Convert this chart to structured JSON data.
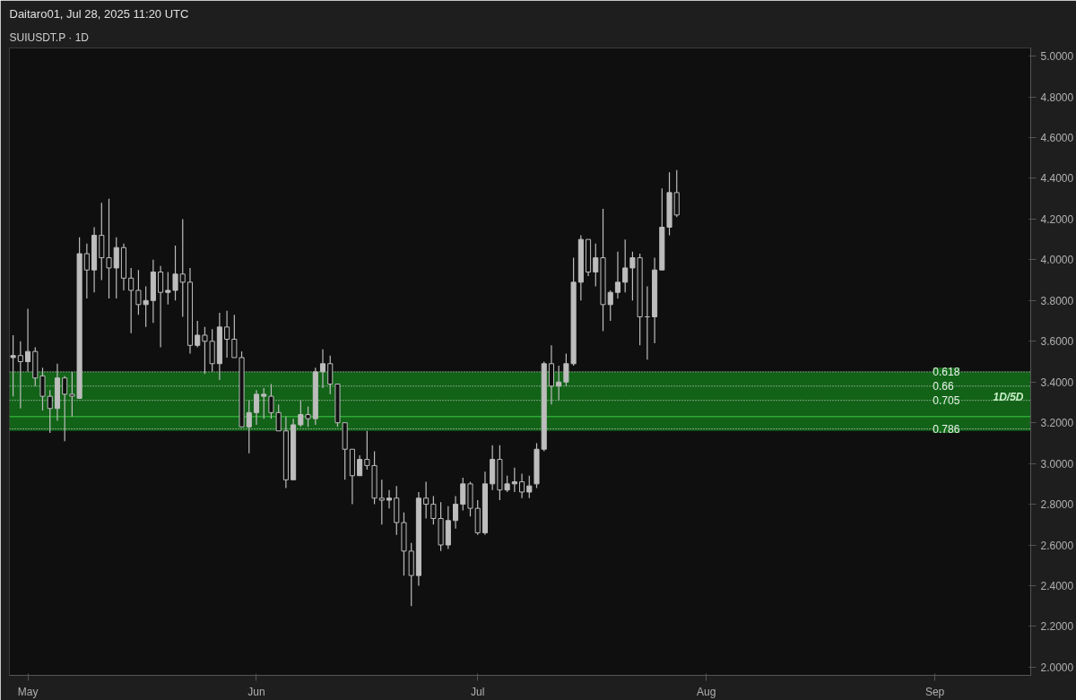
{
  "chart_data": {
    "type": "candlestick",
    "title": "Daitaro01, Jul 28, 2025 11:20 UTC",
    "subtitle": "SUIUSDT.P · 1D",
    "x": [
      "2025-04-29",
      "2025-04-30",
      "2025-05-01",
      "2025-05-02",
      "2025-05-03",
      "2025-05-04",
      "2025-05-05",
      "2025-05-06",
      "2025-05-07",
      "2025-05-08",
      "2025-05-09",
      "2025-05-10",
      "2025-05-11",
      "2025-05-12",
      "2025-05-13",
      "2025-05-14",
      "2025-05-15",
      "2025-05-16",
      "2025-05-17",
      "2025-05-18",
      "2025-05-19",
      "2025-05-20",
      "2025-05-21",
      "2025-05-22",
      "2025-05-23",
      "2025-05-24",
      "2025-05-25",
      "2025-05-26",
      "2025-05-27",
      "2025-05-28",
      "2025-05-29",
      "2025-05-30",
      "2025-05-31",
      "2025-06-01",
      "2025-06-02",
      "2025-06-03",
      "2025-06-04",
      "2025-06-05",
      "2025-06-06",
      "2025-06-07",
      "2025-06-08",
      "2025-06-09",
      "2025-06-10",
      "2025-06-11",
      "2025-06-12",
      "2025-06-13",
      "2025-06-14",
      "2025-06-15",
      "2025-06-16",
      "2025-06-17",
      "2025-06-18",
      "2025-06-19",
      "2025-06-20",
      "2025-06-21",
      "2025-06-22",
      "2025-06-23",
      "2025-06-24",
      "2025-06-25",
      "2025-06-26",
      "2025-06-27",
      "2025-06-28",
      "2025-06-29",
      "2025-06-30",
      "2025-07-01",
      "2025-07-02",
      "2025-07-03",
      "2025-07-04",
      "2025-07-05",
      "2025-07-06",
      "2025-07-07",
      "2025-07-08",
      "2025-07-09",
      "2025-07-10",
      "2025-07-11",
      "2025-07-12",
      "2025-07-13",
      "2025-07-14",
      "2025-07-15",
      "2025-07-16",
      "2025-07-17",
      "2025-07-18",
      "2025-07-19",
      "2025-07-20",
      "2025-07-21",
      "2025-07-22",
      "2025-07-23",
      "2025-07-24",
      "2025-07-25",
      "2025-07-26",
      "2025-07-27",
      "2025-07-28"
    ],
    "ohlc": [
      [
        3.52,
        3.63,
        3.33,
        3.53
      ],
      [
        3.53,
        3.6,
        3.27,
        3.5
      ],
      [
        3.5,
        3.76,
        3.45,
        3.55
      ],
      [
        3.55,
        3.57,
        3.38,
        3.42
      ],
      [
        3.43,
        3.47,
        3.26,
        3.33
      ],
      [
        3.33,
        3.36,
        3.15,
        3.27
      ],
      [
        3.27,
        3.49,
        3.21,
        3.42
      ],
      [
        3.42,
        3.43,
        3.11,
        3.34
      ],
      [
        3.34,
        3.45,
        3.23,
        3.33
      ],
      [
        3.32,
        4.11,
        3.32,
        4.03
      ],
      [
        4.03,
        4.08,
        3.81,
        3.95
      ],
      [
        3.95,
        4.16,
        3.84,
        4.12
      ],
      [
        4.12,
        4.28,
        3.9,
        4.01
      ],
      [
        4.01,
        4.3,
        3.81,
        3.96
      ],
      [
        3.96,
        4.11,
        3.81,
        4.06
      ],
      [
        4.06,
        4.08,
        3.85,
        3.91
      ],
      [
        3.91,
        3.96,
        3.64,
        3.85
      ],
      [
        3.85,
        3.95,
        3.73,
        3.78
      ],
      [
        3.78,
        3.87,
        3.67,
        3.8
      ],
      [
        3.8,
        4.0,
        3.69,
        3.94
      ],
      [
        3.94,
        3.97,
        3.57,
        3.84
      ],
      [
        3.84,
        3.94,
        3.78,
        3.85
      ],
      [
        3.85,
        4.07,
        3.8,
        3.93
      ],
      [
        3.93,
        4.2,
        3.72,
        3.89
      ],
      [
        3.89,
        3.96,
        3.54,
        3.58
      ],
      [
        3.58,
        3.7,
        3.57,
        3.63
      ],
      [
        3.63,
        3.67,
        3.44,
        3.6
      ],
      [
        3.6,
        3.66,
        3.45,
        3.49
      ],
      [
        3.49,
        3.74,
        3.41,
        3.67
      ],
      [
        3.67,
        3.75,
        3.52,
        3.61
      ],
      [
        3.61,
        3.73,
        3.52,
        3.52
      ],
      [
        3.52,
        3.55,
        3.18,
        3.18
      ],
      [
        3.18,
        3.31,
        3.05,
        3.25
      ],
      [
        3.25,
        3.36,
        3.19,
        3.34
      ],
      [
        3.33,
        3.37,
        3.22,
        3.34
      ],
      [
        3.33,
        3.39,
        3.22,
        3.25
      ],
      [
        3.25,
        3.29,
        3.16,
        3.16
      ],
      [
        3.16,
        3.23,
        2.88,
        2.92
      ],
      [
        2.92,
        3.22,
        2.92,
        3.19
      ],
      [
        3.19,
        3.31,
        3.18,
        3.24
      ],
      [
        3.24,
        3.28,
        3.18,
        3.22
      ],
      [
        3.22,
        3.47,
        3.19,
        3.45
      ],
      [
        3.45,
        3.56,
        3.37,
        3.49
      ],
      [
        3.49,
        3.53,
        3.34,
        3.39
      ],
      [
        3.39,
        3.39,
        3.18,
        3.2
      ],
      [
        3.2,
        3.2,
        2.92,
        3.07
      ],
      [
        3.07,
        3.07,
        2.8,
        2.94
      ],
      [
        2.94,
        3.04,
        2.94,
        3.02
      ],
      [
        3.02,
        3.16,
        2.97,
        2.99
      ],
      [
        2.99,
        3.06,
        2.8,
        2.83
      ],
      [
        2.83,
        2.92,
        2.7,
        2.82
      ],
      [
        2.82,
        2.87,
        2.78,
        2.83
      ],
      [
        2.83,
        2.89,
        2.65,
        2.71
      ],
      [
        2.71,
        2.76,
        2.45,
        2.57
      ],
      [
        2.57,
        2.61,
        2.3,
        2.45
      ],
      [
        2.45,
        2.86,
        2.4,
        2.83
      ],
      [
        2.83,
        2.91,
        2.73,
        2.8
      ],
      [
        2.8,
        2.84,
        2.7,
        2.73
      ],
      [
        2.73,
        2.81,
        2.57,
        2.6
      ],
      [
        2.6,
        2.79,
        2.58,
        2.72
      ],
      [
        2.72,
        2.84,
        2.68,
        2.8
      ],
      [
        2.8,
        2.93,
        2.77,
        2.9
      ],
      [
        2.9,
        2.91,
        2.74,
        2.78
      ],
      [
        2.78,
        2.82,
        2.65,
        2.66
      ],
      [
        2.66,
        2.96,
        2.65,
        2.9
      ],
      [
        2.9,
        3.09,
        2.87,
        3.02
      ],
      [
        3.02,
        3.09,
        2.82,
        2.87
      ],
      [
        2.87,
        2.94,
        2.86,
        2.9
      ],
      [
        2.9,
        2.98,
        2.86,
        2.91
      ],
      [
        2.91,
        2.95,
        2.83,
        2.86
      ],
      [
        2.86,
        2.94,
        2.83,
        2.89
      ],
      [
        2.9,
        3.1,
        2.88,
        3.07
      ],
      [
        3.07,
        3.5,
        3.06,
        3.49
      ],
      [
        3.49,
        3.58,
        3.29,
        3.38
      ],
      [
        3.38,
        3.48,
        3.31,
        3.4
      ],
      [
        3.4,
        3.54,
        3.38,
        3.49
      ],
      [
        3.49,
        4.01,
        3.48,
        3.89
      ],
      [
        3.89,
        4.12,
        3.8,
        4.1
      ],
      [
        4.1,
        4.1,
        3.92,
        3.94
      ],
      [
        3.94,
        4.08,
        3.87,
        4.01
      ],
      [
        4.01,
        4.25,
        3.65,
        3.78
      ],
      [
        3.78,
        3.85,
        3.7,
        3.84
      ],
      [
        3.84,
        4.04,
        3.81,
        3.89
      ],
      [
        3.89,
        4.1,
        3.84,
        3.96
      ],
      [
        3.96,
        4.04,
        3.8,
        4.01
      ],
      [
        4.01,
        4.03,
        3.58,
        3.72
      ],
      [
        3.72,
        3.87,
        3.51,
        3.72
      ],
      [
        3.72,
        4.01,
        3.59,
        3.95
      ],
      [
        3.95,
        4.35,
        3.95,
        4.16
      ],
      [
        4.16,
        4.43,
        4.12,
        4.33
      ],
      [
        4.33,
        4.44,
        4.21,
        4.22
      ]
    ],
    "color": "#bdbdbd",
    "xlim": [
      "2025-04-28T12:00",
      "2025-09-14"
    ],
    "xticks": [
      {
        "value": "2025-05-01",
        "label": "May"
      },
      {
        "value": "2025-06-01",
        "label": "Jun"
      },
      {
        "value": "2025-07-01",
        "label": "Jul"
      },
      {
        "value": "2025-08-01",
        "label": "Aug"
      },
      {
        "value": "2025-09-01",
        "label": "Sep"
      }
    ],
    "ylim": [
      1.96,
      5.04
    ],
    "yticks": [
      {
        "value": 2.0,
        "label": "2.0000"
      },
      {
        "value": 2.2,
        "label": "2.2000"
      },
      {
        "value": 2.4,
        "label": "2.4000"
      },
      {
        "value": 2.6,
        "label": "2.6000"
      },
      {
        "value": 2.8,
        "label": "2.8000"
      },
      {
        "value": 3.0,
        "label": "3.0000"
      },
      {
        "value": 3.2,
        "label": "3.2000"
      },
      {
        "value": 3.4,
        "label": "3.4000"
      },
      {
        "value": 3.6,
        "label": "3.6000"
      },
      {
        "value": 3.8,
        "label": "3.8000"
      },
      {
        "value": 4.0,
        "label": "4.0000"
      },
      {
        "value": 4.2,
        "label": "4.2000"
      },
      {
        "value": 4.4,
        "label": "4.4000"
      },
      {
        "value": 4.6,
        "label": "4.6000"
      },
      {
        "value": 4.8,
        "label": "4.8000"
      },
      {
        "value": 5.0,
        "label": "5.0000"
      }
    ],
    "bands": [
      {
        "axis": "y",
        "from": 3.16,
        "to": 3.45,
        "label": "1D/5D",
        "color": "#136b1a"
      }
    ],
    "ref_lines": [
      {
        "axis": "y",
        "value": 3.45,
        "color": "#e0e0e0",
        "line_style": "dotted"
      },
      {
        "axis": "y",
        "value": 3.38,
        "color": "#e0e0e0",
        "line_style": "dotted"
      },
      {
        "axis": "y",
        "value": 3.31,
        "color": "#e0e0e0",
        "line_style": "dotted"
      },
      {
        "axis": "y",
        "value": 3.23,
        "color": "#2fa834",
        "line_style": "solid"
      },
      {
        "axis": "y",
        "value": 3.17,
        "color": "#e0e0e0",
        "line_style": "dotted"
      }
    ],
    "annotations": [
      {
        "text": "0.618",
        "x": "2025-08-31",
        "y": 3.45
      },
      {
        "text": "0.66",
        "x": "2025-08-31",
        "y": 3.38
      },
      {
        "text": "0.705",
        "x": "2025-08-31",
        "y": 3.31
      },
      {
        "text": "0.786",
        "x": "2025-08-31",
        "y": 3.17
      }
    ],
    "grid": false
  }
}
